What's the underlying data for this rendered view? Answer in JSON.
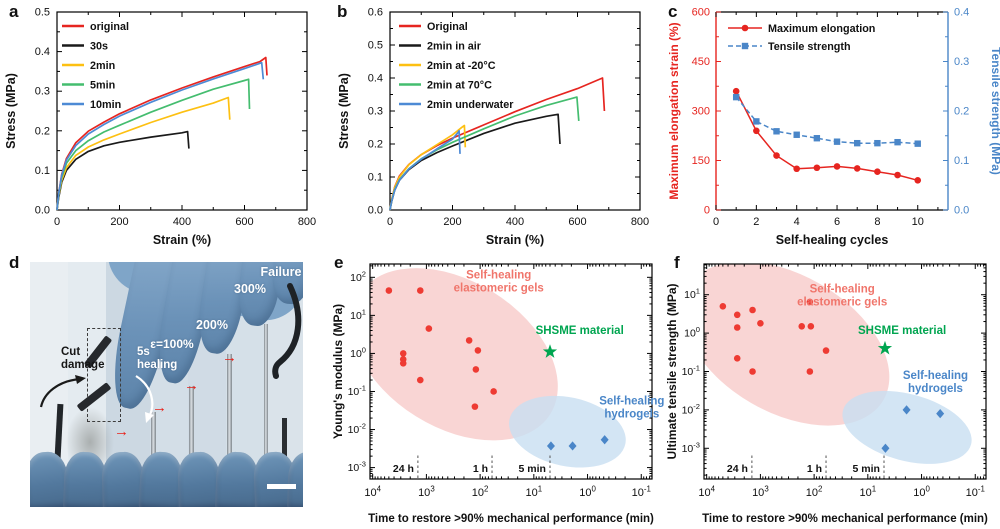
{
  "figure": {
    "background": "#ffffff",
    "panel_letters": [
      "a",
      "b",
      "c",
      "d",
      "e",
      "f"
    ]
  },
  "photo_panel": {
    "annotations": {
      "cut_line1": "Cut",
      "cut_line2": "damage",
      "heal_line1": "5s",
      "heal_line2": "healing",
      "strain_100": "ε=100%",
      "strain_200": "200%",
      "strain_300": "300%",
      "failure": "Failure"
    }
  },
  "chart_data": [
    {
      "id": "a",
      "type": "line",
      "xlabel": "Strain (%)",
      "ylabel": "Stress (MPa)",
      "xlim": [
        0,
        800
      ],
      "ylim": [
        0,
        0.5
      ],
      "xticks": [
        0,
        200,
        400,
        600,
        800
      ],
      "yticks": [
        0,
        0.1,
        0.2,
        0.3,
        0.4,
        0.5
      ],
      "xminor": 100,
      "yminor": 0.05,
      "xdec": 0,
      "ydec": 1,
      "series": [
        {
          "name": "original",
          "color": "#e62520",
          "points": [
            [
              0,
              0
            ],
            [
              5,
              0.04
            ],
            [
              15,
              0.09
            ],
            [
              30,
              0.13
            ],
            [
              60,
              0.17
            ],
            [
              100,
              0.199
            ],
            [
              150,
              0.222
            ],
            [
              200,
              0.243
            ],
            [
              300,
              0.278
            ],
            [
              400,
              0.308
            ],
            [
              500,
              0.336
            ],
            [
              600,
              0.362
            ],
            [
              650,
              0.375
            ],
            [
              668,
              0.385
            ],
            [
              672,
              0.34
            ]
          ]
        },
        {
          "name": "30s",
          "color": "#1a1a1a",
          "points": [
            [
              0,
              0
            ],
            [
              5,
              0.03
            ],
            [
              15,
              0.07
            ],
            [
              30,
              0.1
            ],
            [
              60,
              0.128
            ],
            [
              100,
              0.148
            ],
            [
              150,
              0.162
            ],
            [
              200,
              0.171
            ],
            [
              300,
              0.184
            ],
            [
              400,
              0.195
            ],
            [
              418,
              0.198
            ],
            [
              422,
              0.155
            ]
          ]
        },
        {
          "name": "2min",
          "color": "#fdc012",
          "points": [
            [
              0,
              0
            ],
            [
              5,
              0.035
            ],
            [
              15,
              0.075
            ],
            [
              30,
              0.107
            ],
            [
              60,
              0.138
            ],
            [
              100,
              0.159
            ],
            [
              150,
              0.177
            ],
            [
              200,
              0.192
            ],
            [
              300,
              0.221
            ],
            [
              400,
              0.247
            ],
            [
              500,
              0.27
            ],
            [
              548,
              0.284
            ],
            [
              553,
              0.228
            ]
          ]
        },
        {
          "name": "5min",
          "color": "#44bd6f",
          "points": [
            [
              0,
              0
            ],
            [
              5,
              0.038
            ],
            [
              15,
              0.082
            ],
            [
              30,
              0.118
            ],
            [
              60,
              0.15
            ],
            [
              100,
              0.175
            ],
            [
              150,
              0.197
            ],
            [
              200,
              0.214
            ],
            [
              300,
              0.247
            ],
            [
              400,
              0.277
            ],
            [
              500,
              0.305
            ],
            [
              600,
              0.327
            ],
            [
              613,
              0.33
            ],
            [
              616,
              0.255
            ]
          ]
        },
        {
          "name": "10min",
          "color": "#4d8ad5",
          "points": [
            [
              0,
              0
            ],
            [
              5,
              0.04
            ],
            [
              15,
              0.088
            ],
            [
              30,
              0.126
            ],
            [
              60,
              0.163
            ],
            [
              100,
              0.192
            ],
            [
              150,
              0.216
            ],
            [
              200,
              0.237
            ],
            [
              300,
              0.272
            ],
            [
              400,
              0.303
            ],
            [
              500,
              0.331
            ],
            [
              600,
              0.357
            ],
            [
              655,
              0.372
            ],
            [
              660,
              0.33
            ]
          ]
        }
      ]
    },
    {
      "id": "b",
      "type": "line",
      "xlabel": "Strain (%)",
      "ylabel": "Stress (MPa)",
      "xlim": [
        0,
        800
      ],
      "ylim": [
        0,
        0.6
      ],
      "xticks": [
        0,
        200,
        400,
        600,
        800
      ],
      "yticks": [
        0,
        0.1,
        0.2,
        0.3,
        0.4,
        0.5,
        0.6
      ],
      "xminor": 100,
      "yminor": 0.05,
      "xdec": 0,
      "ydec": 1,
      "series": [
        {
          "name": "Original",
          "color": "#e62520",
          "points": [
            [
              0,
              0
            ],
            [
              5,
              0.03
            ],
            [
              15,
              0.07
            ],
            [
              30,
              0.103
            ],
            [
              60,
              0.138
            ],
            [
              100,
              0.168
            ],
            [
              150,
              0.195
            ],
            [
              200,
              0.218
            ],
            [
              300,
              0.258
            ],
            [
              400,
              0.298
            ],
            [
              500,
              0.335
            ],
            [
              600,
              0.368
            ],
            [
              680,
              0.4
            ],
            [
              686,
              0.3
            ]
          ]
        },
        {
          "name": "2min in air",
          "color": "#1a1a1a",
          "points": [
            [
              0,
              0
            ],
            [
              5,
              0.025
            ],
            [
              15,
              0.06
            ],
            [
              30,
              0.09
            ],
            [
              60,
              0.122
            ],
            [
              100,
              0.15
            ],
            [
              150,
              0.174
            ],
            [
              200,
              0.194
            ],
            [
              300,
              0.232
            ],
            [
              400,
              0.263
            ],
            [
              500,
              0.284
            ],
            [
              538,
              0.29
            ],
            [
              544,
              0.2
            ]
          ]
        },
        {
          "name": "2min at -20°C",
          "color": "#fdc012",
          "points": [
            [
              0,
              0
            ],
            [
              5,
              0.03
            ],
            [
              15,
              0.068
            ],
            [
              30,
              0.1
            ],
            [
              60,
              0.137
            ],
            [
              100,
              0.168
            ],
            [
              150,
              0.198
            ],
            [
              200,
              0.228
            ],
            [
              232,
              0.252
            ],
            [
              238,
              0.256
            ],
            [
              241,
              0.19
            ]
          ]
        },
        {
          "name": "2min at 70°C",
          "color": "#44bd6f",
          "points": [
            [
              0,
              0
            ],
            [
              5,
              0.027
            ],
            [
              15,
              0.062
            ],
            [
              30,
              0.092
            ],
            [
              60,
              0.125
            ],
            [
              100,
              0.155
            ],
            [
              150,
              0.182
            ],
            [
              200,
              0.205
            ],
            [
              300,
              0.246
            ],
            [
              400,
              0.285
            ],
            [
              500,
              0.317
            ],
            [
              598,
              0.342
            ],
            [
              604,
              0.27
            ]
          ]
        },
        {
          "name": "2min underwater",
          "color": "#4d8ad5",
          "points": [
            [
              0,
              0
            ],
            [
              5,
              0.026
            ],
            [
              15,
              0.06
            ],
            [
              30,
              0.09
            ],
            [
              60,
              0.124
            ],
            [
              100,
              0.154
            ],
            [
              150,
              0.185
            ],
            [
              200,
              0.215
            ],
            [
              218,
              0.235
            ],
            [
              221,
              0.24
            ],
            [
              224,
              0.17
            ]
          ]
        }
      ]
    },
    {
      "id": "c",
      "type": "dual",
      "xlabel": "Self-healing cycles",
      "xlim": [
        0,
        11.5
      ],
      "xticks": [
        0,
        2,
        4,
        6,
        8,
        10
      ],
      "xminor": 1,
      "left": {
        "label": "Maximum elongation strain (%)",
        "color": "#e62520",
        "lim": [
          0,
          600
        ],
        "ticks": [
          0,
          150,
          300,
          450,
          600
        ],
        "minor": 75,
        "dec": 0
      },
      "right": {
        "label": "Tensile strength (MPa)",
        "color": "#4a86c8",
        "lim": [
          0,
          0.4
        ],
        "ticks": [
          0,
          0.1,
          0.2,
          0.3,
          0.4
        ],
        "minor": 0.05,
        "dec": 1
      },
      "x": [
        1,
        2,
        3,
        4,
        5,
        6,
        7,
        8,
        9,
        10
      ],
      "series": [
        {
          "name": "Maximum elongation",
          "axis": "left",
          "color": "#e62520",
          "marker": "circle",
          "line": "solid",
          "values": [
            360,
            240,
            165,
            125,
            128,
            132,
            126,
            116,
            106,
            90
          ]
        },
        {
          "name": "Tensile strength",
          "axis": "right",
          "color": "#4a86c8",
          "marker": "square",
          "line": "dashed",
          "values": [
            0.228,
            0.179,
            0.159,
            0.152,
            0.145,
            0.138,
            0.135,
            0.135,
            0.137,
            0.134
          ]
        }
      ]
    },
    {
      "id": "e",
      "type": "scatlog",
      "xlabel": "Time to restore >90% mechanical performance (min)",
      "ylabel": "Young's modulus (MPa)",
      "x_exp_range": [
        4.05,
        -1.2
      ],
      "y_exp_range": [
        2.35,
        -3.3
      ],
      "xticks_exp": [
        4,
        3,
        2,
        1,
        0,
        -1
      ],
      "yticks_exp": [
        2,
        1,
        0,
        -1,
        -2,
        -3
      ],
      "vlines": [
        {
          "x": 1440,
          "label": "24 h"
        },
        {
          "x": 60,
          "label": "1 h"
        },
        {
          "x": 5,
          "label": "5 min"
        }
      ],
      "regions": [
        {
          "name": "elastomeric-gels",
          "fill": "#f8cbc9",
          "label_lines": [
            "Self-healing",
            "elastomeric gels"
          ],
          "label_color": "#f0756b",
          "label_at": [
            45,
            65
          ]
        },
        {
          "name": "hydrogels",
          "fill": "#c8def1",
          "label_lines": [
            "Self-healing",
            "hydrogels"
          ],
          "label_color": "#4a86c8",
          "label_at": [
            0.15,
            0.032
          ]
        }
      ],
      "highlight": {
        "label": "SHSME material",
        "color": "#00a550",
        "label_at": [
          1.4,
          3.2
        ],
        "point": [
          5,
          1.1
        ]
      },
      "series": [
        {
          "name": "Self-healing elastomeric gels",
          "marker": "circle",
          "color": "#ee3b33",
          "points": [
            [
              5000,
              45
            ],
            [
              1300,
              45
            ],
            [
              900,
              4.5
            ],
            [
              160,
              2.2
            ],
            [
              110,
              1.2
            ],
            [
              2700,
              1.0
            ],
            [
              2700,
              0.7
            ],
            [
              2700,
              0.55
            ],
            [
              1300,
              0.2
            ],
            [
              120,
              0.38
            ],
            [
              56,
              0.1
            ],
            [
              125,
              0.04
            ]
          ]
        },
        {
          "name": "Self-healing hydrogels",
          "marker": "diamond",
          "color": "#4a86c8",
          "points": [
            [
              4.8,
              0.0037
            ],
            [
              1.9,
              0.0037
            ],
            [
              0.48,
              0.0054
            ]
          ]
        }
      ]
    },
    {
      "id": "f",
      "type": "scatlog",
      "xlabel": "Time to restore >90% mechanical performance (min)",
      "ylabel": "Ultimate tensile strength (MPa)",
      "x_exp_range": [
        4.05,
        -1.2
      ],
      "y_exp_range": [
        1.8,
        -3.8
      ],
      "xticks_exp": [
        4,
        3,
        2,
        1,
        0,
        -1
      ],
      "yticks_exp": [
        1,
        0,
        -1,
        -2,
        -3
      ],
      "vlines": [
        {
          "x": 1440,
          "label": "24 h"
        },
        {
          "x": 60,
          "label": "1 h"
        },
        {
          "x": 5,
          "label": "5 min"
        }
      ],
      "regions": [
        {
          "name": "elastomeric-gels",
          "fill": "#f8cbc9",
          "label_lines": [
            "Self-healing",
            "elastomeric gels"
          ],
          "label_color": "#f0756b",
          "label_at": [
            30,
            8
          ]
        },
        {
          "name": "hydrogels",
          "fill": "#c8def1",
          "label_lines": [
            "Self-healing",
            "hydrogels"
          ],
          "label_color": "#4a86c8",
          "label_at": [
            0.55,
            0.045
          ]
        }
      ],
      "highlight": {
        "label": "SHSME material",
        "color": "#00a550",
        "label_at": [
          2.3,
          0.95
        ],
        "point": [
          4.8,
          0.4
        ]
      },
      "series": [
        {
          "name": "Self-healing elastomeric gels",
          "marker": "circle",
          "color": "#ee3b33",
          "points": [
            [
              5000,
              5
            ],
            [
              2700,
              3
            ],
            [
              2700,
              1.4
            ],
            [
              1400,
              4
            ],
            [
              1000,
              1.8
            ],
            [
              2700,
              0.22
            ],
            [
              1400,
              0.1
            ],
            [
              120,
              6.5
            ],
            [
              170,
              1.5
            ],
            [
              115,
              1.5
            ],
            [
              120,
              0.1
            ],
            [
              60,
              0.35
            ]
          ]
        },
        {
          "name": "Self-healing hydrogels",
          "marker": "diamond",
          "color": "#4a86c8",
          "points": [
            [
              1.9,
              0.01
            ],
            [
              0.45,
              0.008
            ],
            [
              4.7,
              0.001
            ]
          ]
        }
      ]
    }
  ]
}
